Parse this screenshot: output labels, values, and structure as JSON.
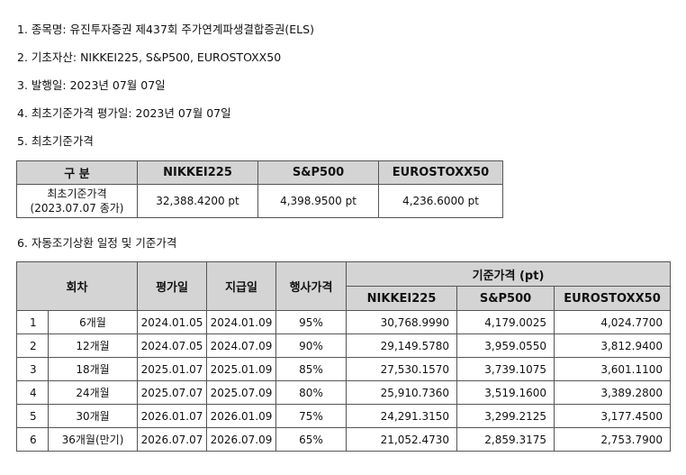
{
  "lines": [
    "1. 종목명: 유진투자증권 제437회 주가연계파생결합증권(ELS)",
    "2. 기초자산: NIKKEI225, S&P500, EUROSTOXX50",
    "3. 발행일: 2023년 07월 07일",
    "4. 최초기준가격 평가일: 2023년 07월 07일",
    "5. 최초기준가격",
    "6. 자동조기상환 일정 및 기준가격"
  ],
  "initial_table": {
    "headers": [
      "구 분",
      "NIKKEI225",
      "S&P500",
      "EUROSTOXX50"
    ],
    "row_label_1": "최초기준가격",
    "row_label_2": "(2023.07.07 종가)",
    "values": [
      "32,388.4200 pt",
      "4,398.9500 pt",
      "4,236.6000 pt"
    ]
  },
  "schedule_table": {
    "headers": {
      "round": "회차",
      "eval_date": "평가일",
      "pay_date": "지급일",
      "strike": "행사가격",
      "base_price": "기준가격 (pt)",
      "nikkei": "NIKKEI225",
      "sp500": "S&P500",
      "stoxx": "EUROSTOXX50"
    },
    "rows": [
      {
        "no": "1",
        "period": "6개월",
        "eval": "2024.01.05",
        "pay": "2024.01.09",
        "strike": "95%",
        "nikkei": "30,768.9990",
        "sp500": "4,179.0025",
        "stoxx": "4,024.7700"
      },
      {
        "no": "2",
        "period": "12개월",
        "eval": "2024.07.05",
        "pay": "2024.07.09",
        "strike": "90%",
        "nikkei": "29,149.5780",
        "sp500": "3,959.0550",
        "stoxx": "3,812.9400"
      },
      {
        "no": "3",
        "period": "18개월",
        "eval": "2025.01.07",
        "pay": "2025.01.09",
        "strike": "85%",
        "nikkei": "27,530.1570",
        "sp500": "3,739.1075",
        "stoxx": "3,601.1100"
      },
      {
        "no": "4",
        "period": "24개월",
        "eval": "2025.07.07",
        "pay": "2025.07.09",
        "strike": "80%",
        "nikkei": "25,910.7360",
        "sp500": "3,519.1600",
        "stoxx": "3,389.2800"
      },
      {
        "no": "5",
        "period": "30개월",
        "eval": "2026.01.07",
        "pay": "2026.01.09",
        "strike": "75%",
        "nikkei": "24,291.3150",
        "sp500": "3,299.2125",
        "stoxx": "3,177.4500"
      },
      {
        "no": "6",
        "period": "36개월(만기)",
        "eval": "2026.07.07",
        "pay": "2026.07.09",
        "strike": "65%",
        "nikkei": "21,052.4730",
        "sp500": "2,859.3175",
        "stoxx": "2,753.7900"
      }
    ]
  }
}
